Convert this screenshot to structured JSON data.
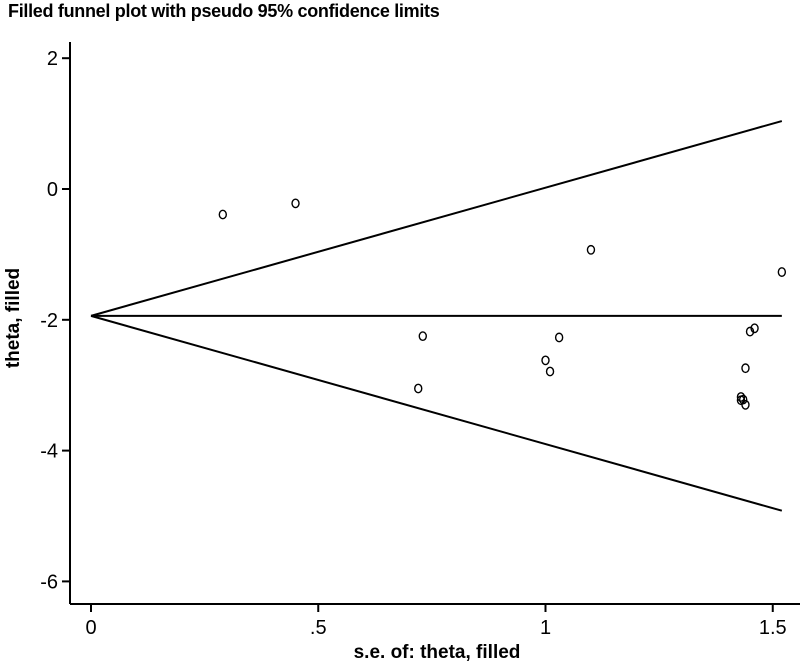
{
  "chart_data": {
    "type": "scatter",
    "title": "Filled funnel plot with pseudo 95% confidence limits",
    "xlabel": "s.e. of: theta, filled",
    "ylabel": "theta, filled",
    "xlim": [
      0,
      1.52
    ],
    "ylim": [
      -6,
      2
    ],
    "x_ticks": [
      0,
      0.5,
      1,
      1.5
    ],
    "x_tick_labels": [
      "0",
      ".5",
      "1",
      "1.5"
    ],
    "y_ticks": [
      2,
      0,
      -2,
      -4,
      -6
    ],
    "y_tick_labels": [
      "2",
      "0",
      "-2",
      "-4",
      "-6"
    ],
    "grid": false,
    "pooled_estimate": -1.94,
    "series": [
      {
        "x": [
          0.29,
          0.45,
          0.72,
          0.73,
          1.0,
          1.01,
          1.03,
          1.1,
          1.43,
          1.43,
          1.44,
          1.44,
          1.45,
          1.46,
          1.52,
          1.435
        ],
        "y": [
          -0.39,
          -0.22,
          -3.05,
          -2.25,
          -2.62,
          -2.79,
          -2.27,
          -0.93,
          -3.18,
          -3.23,
          -3.3,
          -2.74,
          -2.18,
          -2.13,
          -1.27,
          -3.22
        ]
      }
    ]
  }
}
